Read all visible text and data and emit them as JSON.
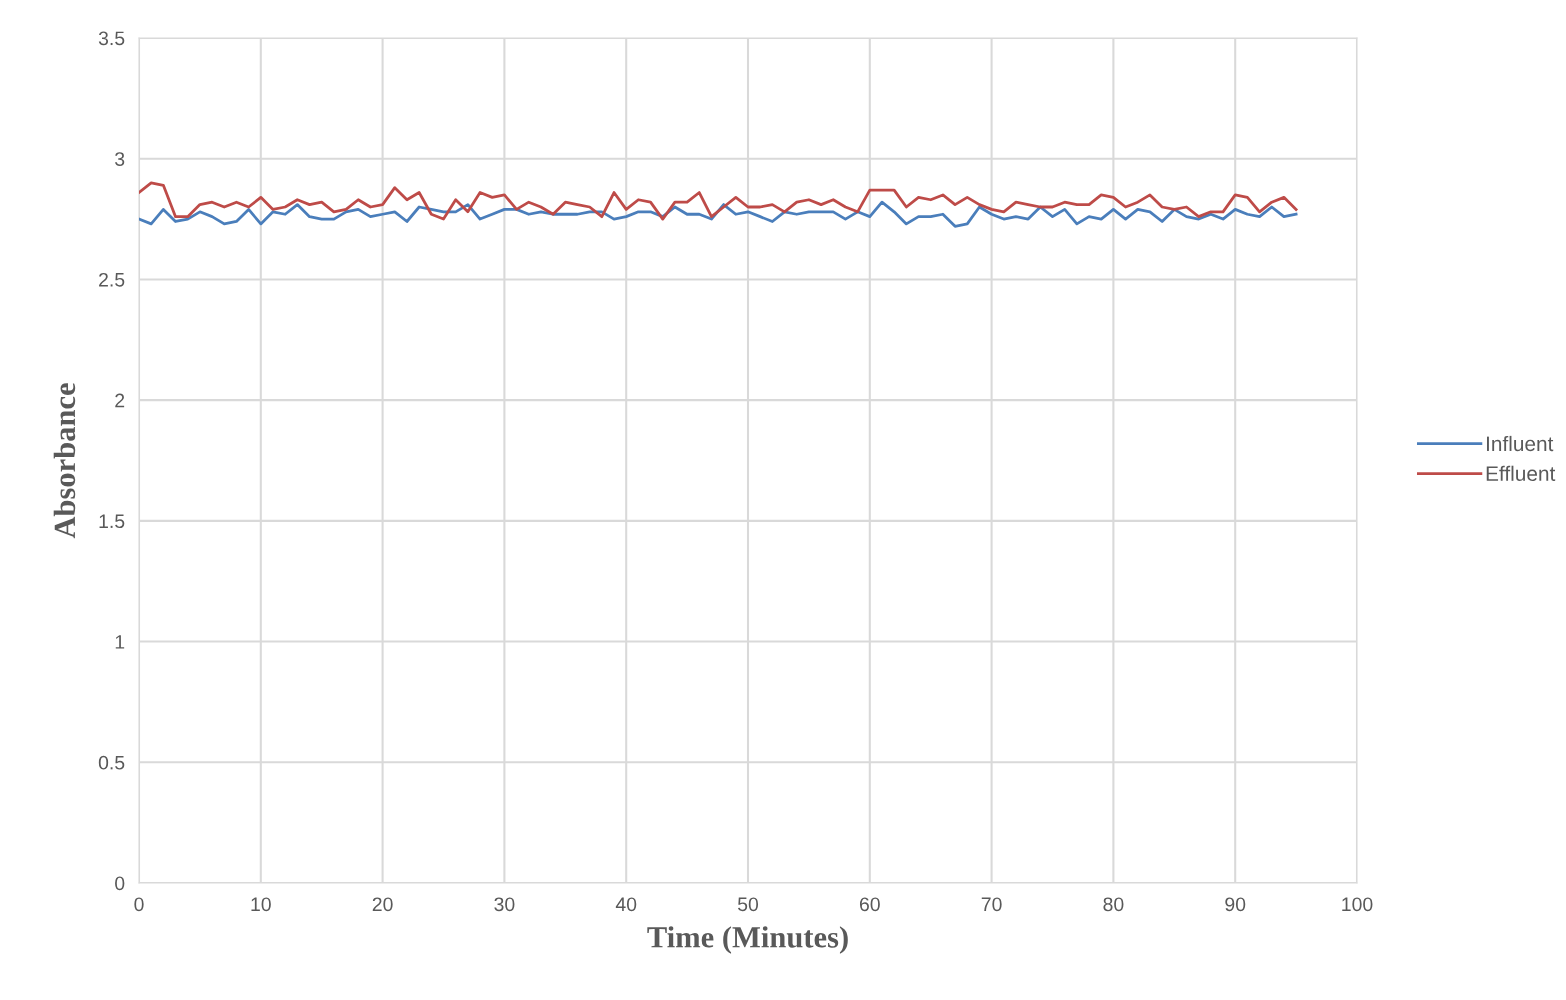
{
  "chart_data": {
    "type": "line",
    "xlabel": "Time (Minutes)",
    "ylabel": "Absorbance",
    "x": [
      0,
      1,
      2,
      3,
      4,
      5,
      6,
      7,
      8,
      9,
      10,
      11,
      12,
      13,
      14,
      15,
      16,
      17,
      18,
      19,
      20,
      21,
      22,
      23,
      24,
      25,
      26,
      27,
      28,
      29,
      30,
      31,
      32,
      33,
      34,
      35,
      36,
      37,
      38,
      39,
      40,
      41,
      42,
      43,
      44,
      45,
      46,
      47,
      48,
      49,
      50,
      51,
      52,
      53,
      54,
      55,
      56,
      57,
      58,
      59,
      60,
      61,
      62,
      63,
      64,
      65,
      66,
      67,
      68,
      69,
      70,
      71,
      72,
      73,
      74,
      75,
      76,
      77,
      78,
      79,
      80,
      81,
      82,
      83,
      84,
      85,
      86,
      87,
      88,
      89,
      90,
      91,
      92,
      93,
      94,
      95
    ],
    "series": [
      {
        "name": "Influent",
        "color": "#4a7ebb",
        "values": [
          2.75,
          2.73,
          2.79,
          2.74,
          2.75,
          2.78,
          2.76,
          2.73,
          2.74,
          2.79,
          2.73,
          2.78,
          2.77,
          2.81,
          2.76,
          2.75,
          2.75,
          2.78,
          2.79,
          2.76,
          2.77,
          2.78,
          2.74,
          2.8,
          2.79,
          2.78,
          2.78,
          2.81,
          2.75,
          2.77,
          2.79,
          2.79,
          2.77,
          2.78,
          2.77,
          2.77,
          2.77,
          2.78,
          2.78,
          2.75,
          2.76,
          2.78,
          2.78,
          2.76,
          2.8,
          2.77,
          2.77,
          2.75,
          2.81,
          2.77,
          2.78,
          2.76,
          2.74,
          2.78,
          2.77,
          2.78,
          2.78,
          2.78,
          2.75,
          2.78,
          2.76,
          2.82,
          2.78,
          2.73,
          2.76,
          2.76,
          2.77,
          2.72,
          2.73,
          2.8,
          2.77,
          2.75,
          2.76,
          2.75,
          2.8,
          2.76,
          2.79,
          2.73,
          2.76,
          2.75,
          2.79,
          2.75,
          2.79,
          2.78,
          2.74,
          2.79,
          2.76,
          2.75,
          2.77,
          2.75,
          2.79,
          2.77,
          2.76,
          2.8,
          2.76,
          2.77
        ]
      },
      {
        "name": "Effluent",
        "color": "#be4b48",
        "values": [
          2.86,
          2.9,
          2.89,
          2.76,
          2.76,
          2.81,
          2.82,
          2.8,
          2.82,
          2.8,
          2.84,
          2.79,
          2.8,
          2.83,
          2.81,
          2.82,
          2.78,
          2.79,
          2.83,
          2.8,
          2.81,
          2.88,
          2.83,
          2.86,
          2.77,
          2.75,
          2.83,
          2.78,
          2.86,
          2.84,
          2.85,
          2.79,
          2.82,
          2.8,
          2.77,
          2.82,
          2.81,
          2.8,
          2.76,
          2.86,
          2.79,
          2.83,
          2.82,
          2.75,
          2.82,
          2.82,
          2.86,
          2.76,
          2.8,
          2.84,
          2.8,
          2.8,
          2.81,
          2.78,
          2.82,
          2.83,
          2.81,
          2.83,
          2.8,
          2.78,
          2.87,
          2.87,
          2.87,
          2.8,
          2.84,
          2.83,
          2.85,
          2.81,
          2.84,
          2.81,
          2.79,
          2.78,
          2.82,
          2.81,
          2.8,
          2.8,
          2.82,
          2.81,
          2.81,
          2.85,
          2.84,
          2.8,
          2.82,
          2.85,
          2.8,
          2.79,
          2.8,
          2.76,
          2.78,
          2.78,
          2.85,
          2.84,
          2.78,
          2.82,
          2.84,
          2.79
        ]
      }
    ],
    "xlim": [
      0,
      100
    ],
    "xticks": [
      0,
      10,
      20,
      30,
      40,
      50,
      60,
      70,
      80,
      90,
      100
    ],
    "ylim": [
      0,
      3.5
    ],
    "yticks": [
      0,
      0.5,
      1,
      1.5,
      2,
      2.5,
      3,
      3.5
    ],
    "grid": true,
    "legend": "right",
    "marker": "none",
    "line_style": "solid"
  }
}
